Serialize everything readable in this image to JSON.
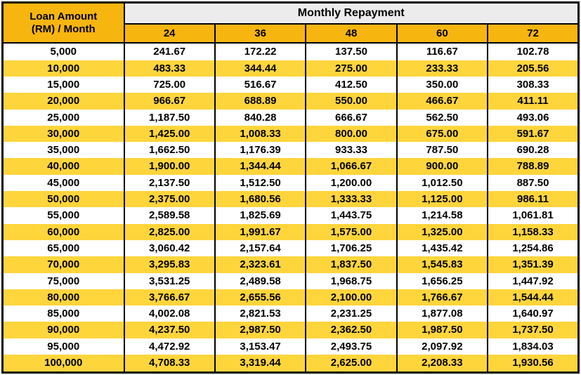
{
  "colors": {
    "header_gold": "#F7B50F",
    "row_yellow": "#FFD53C",
    "banner_gray": "#ECECEC",
    "border_black": "#000000",
    "text_black": "#000000",
    "row_white": "#FFFFFF"
  },
  "table": {
    "corner_header_line1": "Loan Amount",
    "corner_header_line2": "(RM) / Month",
    "group_header": "Monthly Repayment"
  },
  "chart_data": {
    "type": "table",
    "title": "Monthly Repayment",
    "row_header_label": "Loan Amount (RM) / Month",
    "columns": [
      "24",
      "36",
      "48",
      "60",
      "72"
    ],
    "rows": [
      {
        "loan_amount": 5000,
        "repayments": [
          241.67,
          172.22,
          137.5,
          116.67,
          102.78
        ]
      },
      {
        "loan_amount": 10000,
        "repayments": [
          483.33,
          344.44,
          275.0,
          233.33,
          205.56
        ]
      },
      {
        "loan_amount": 15000,
        "repayments": [
          725.0,
          516.67,
          412.5,
          350.0,
          308.33
        ]
      },
      {
        "loan_amount": 20000,
        "repayments": [
          966.67,
          688.89,
          550.0,
          466.67,
          411.11
        ]
      },
      {
        "loan_amount": 25000,
        "repayments": [
          1187.5,
          840.28,
          666.67,
          562.5,
          493.06
        ]
      },
      {
        "loan_amount": 30000,
        "repayments": [
          1425.0,
          1008.33,
          800.0,
          675.0,
          591.67
        ]
      },
      {
        "loan_amount": 35000,
        "repayments": [
          1662.5,
          1176.39,
          933.33,
          787.5,
          690.28
        ]
      },
      {
        "loan_amount": 40000,
        "repayments": [
          1900.0,
          1344.44,
          1066.67,
          900.0,
          788.89
        ]
      },
      {
        "loan_amount": 45000,
        "repayments": [
          2137.5,
          1512.5,
          1200.0,
          1012.5,
          887.5
        ]
      },
      {
        "loan_amount": 50000,
        "repayments": [
          2375.0,
          1680.56,
          1333.33,
          1125.0,
          986.11
        ]
      },
      {
        "loan_amount": 55000,
        "repayments": [
          2589.58,
          1825.69,
          1443.75,
          1214.58,
          1061.81
        ]
      },
      {
        "loan_amount": 60000,
        "repayments": [
          2825.0,
          1991.67,
          1575.0,
          1325.0,
          1158.33
        ]
      },
      {
        "loan_amount": 65000,
        "repayments": [
          3060.42,
          2157.64,
          1706.25,
          1435.42,
          1254.86
        ]
      },
      {
        "loan_amount": 70000,
        "repayments": [
          3295.83,
          2323.61,
          1837.5,
          1545.83,
          1351.39
        ]
      },
      {
        "loan_amount": 75000,
        "repayments": [
          3531.25,
          2489.58,
          1968.75,
          1656.25,
          1447.92
        ]
      },
      {
        "loan_amount": 80000,
        "repayments": [
          3766.67,
          2655.56,
          2100.0,
          1766.67,
          1544.44
        ]
      },
      {
        "loan_amount": 85000,
        "repayments": [
          4002.08,
          2821.53,
          2231.25,
          1877.08,
          1640.97
        ]
      },
      {
        "loan_amount": 90000,
        "repayments": [
          4237.5,
          2987.5,
          2362.5,
          1987.5,
          1737.5
        ]
      },
      {
        "loan_amount": 95000,
        "repayments": [
          4472.92,
          3153.47,
          2493.75,
          2097.92,
          1834.03
        ]
      },
      {
        "loan_amount": 100000,
        "repayments": [
          4708.33,
          3319.44,
          2625.0,
          2208.33,
          1930.56
        ]
      }
    ]
  }
}
